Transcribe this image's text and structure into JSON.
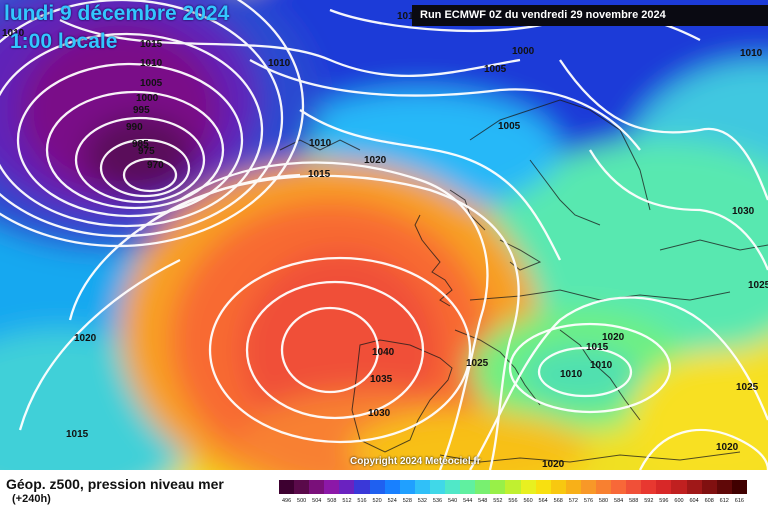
{
  "header": {
    "date": "lundi 9 décembre 2024",
    "time": "1:00 locale",
    "run": "Run ECMWF 0Z du vendredi 29 novembre 2024"
  },
  "copyright": "Copyright 2024 Meteociel.fr",
  "footer": {
    "parameter": "Géop. z500, pression niveau mer",
    "lead": "(+240h)"
  },
  "scale": {
    "labels": [
      "496",
      "500",
      "504",
      "508",
      "512",
      "516",
      "520",
      "524",
      "528",
      "532",
      "536",
      "540",
      "544",
      "548",
      "552",
      "556",
      "560",
      "564",
      "568",
      "572",
      "576",
      "580",
      "584",
      "588",
      "592",
      "596",
      "600",
      "604",
      "608",
      "612",
      "616"
    ],
    "colors": [
      "#3d0030",
      "#5a0a4a",
      "#7a107a",
      "#8c18a8",
      "#6a22c0",
      "#3a38d8",
      "#1f60f0",
      "#1880ff",
      "#20a0ff",
      "#30c0f8",
      "#40d8e8",
      "#50e8c8",
      "#60f0a0",
      "#78f070",
      "#98f048",
      "#c0f030",
      "#e8f020",
      "#f8e010",
      "#f8c810",
      "#f8b018",
      "#f89828",
      "#f88030",
      "#f86838",
      "#f05038",
      "#e83830",
      "#d82828",
      "#c02020",
      "#a01818",
      "#801010",
      "#600808",
      "#400000"
    ]
  },
  "isobars": [
    {
      "value": "1010",
      "pos": "top-left"
    },
    {
      "value": "1015",
      "pos": "iceland-low"
    },
    {
      "value": "1010",
      "pos": "iceland-low"
    },
    {
      "value": "1005",
      "pos": "iceland-low"
    },
    {
      "value": "1000",
      "pos": "iceland-low"
    },
    {
      "value": "995",
      "pos": "iceland-low"
    },
    {
      "value": "990",
      "pos": "iceland-low"
    },
    {
      "value": "985",
      "pos": "iceland-low"
    },
    {
      "value": "975",
      "pos": "iceland-low"
    },
    {
      "value": "970",
      "pos": "iceland-low"
    },
    {
      "value": "1010",
      "pos": "greenland"
    },
    {
      "value": "1010",
      "pos": "top-center"
    },
    {
      "value": "1000",
      "pos": "norwegian-sea"
    },
    {
      "value": "1005",
      "pos": "norwegian-sea"
    },
    {
      "value": "1005",
      "pos": "scandinavia"
    },
    {
      "value": "1010",
      "pos": "faroe"
    },
    {
      "value": "1015",
      "pos": "faroe"
    },
    {
      "value": "1020",
      "pos": "north-sea"
    },
    {
      "value": "1010",
      "pos": "right-edge"
    },
    {
      "value": "1030",
      "pos": "russia"
    },
    {
      "value": "1025",
      "pos": "right-edge"
    },
    {
      "value": "1020",
      "pos": "atlantic-west"
    },
    {
      "value": "1015",
      "pos": "atlantic-southwest"
    },
    {
      "value": "1040",
      "pos": "iberia"
    },
    {
      "value": "1035",
      "pos": "iberia"
    },
    {
      "value": "1030",
      "pos": "iberia"
    },
    {
      "value": "1025",
      "pos": "mediterranean"
    },
    {
      "value": "1020",
      "pos": "balkans"
    },
    {
      "value": "1015",
      "pos": "balkans"
    },
    {
      "value": "1010",
      "pos": "balkans"
    },
    {
      "value": "1010",
      "pos": "balkans"
    },
    {
      "value": "1025",
      "pos": "turkey"
    },
    {
      "value": "1020",
      "pos": "eastern-med"
    },
    {
      "value": "1020",
      "pos": "north-africa"
    }
  ]
}
